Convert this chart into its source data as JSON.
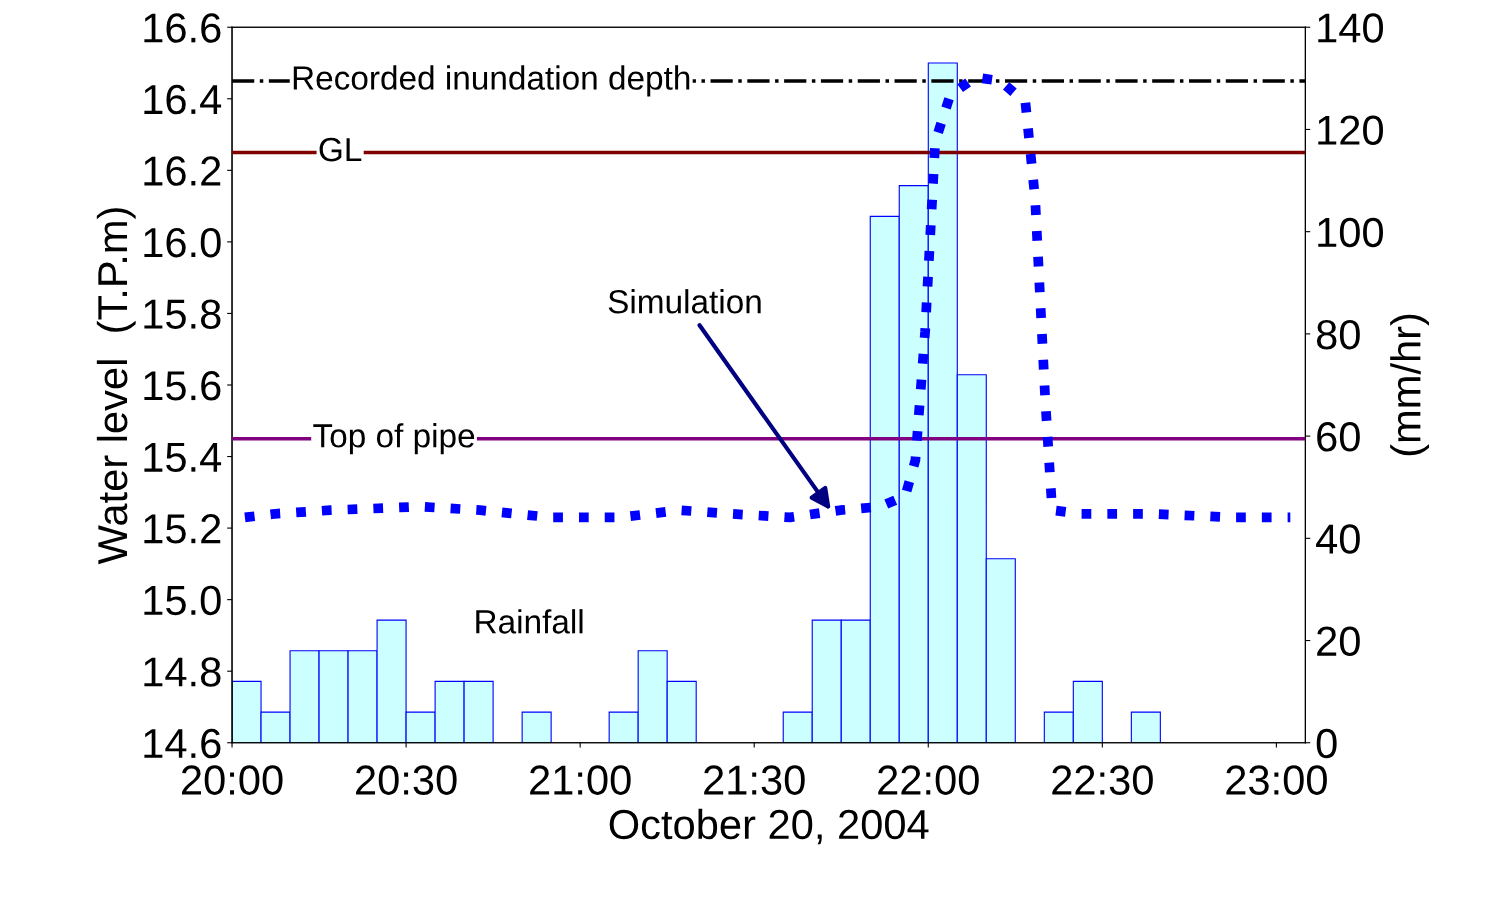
{
  "chart_data": {
    "type": "bar",
    "xlabel": "October 20, 2004",
    "ylabel": "Water level  (T.P.m)",
    "y2label": "(mm/hr)",
    "xlim": [
      20,
      23.0833
    ],
    "xticks": [
      {
        "value": 20,
        "label": "20:00"
      },
      {
        "value": 20.5,
        "label": "20:30"
      },
      {
        "value": 21,
        "label": "21:00"
      },
      {
        "value": 21.5,
        "label": "21:30"
      },
      {
        "value": 22,
        "label": "22:00"
      },
      {
        "value": 22.5,
        "label": "22:30"
      },
      {
        "value": 23,
        "label": "23:00"
      }
    ],
    "ylim": [
      14.6,
      16.6
    ],
    "yticks": [
      {
        "value": 14.6,
        "label": "14.6"
      },
      {
        "value": 14.8,
        "label": "14.8"
      },
      {
        "value": 15.0,
        "label": "15.0"
      },
      {
        "value": 15.2,
        "label": "15.2"
      },
      {
        "value": 15.4,
        "label": "15.4"
      },
      {
        "value": 15.6,
        "label": "15.6"
      },
      {
        "value": 15.8,
        "label": "15.8"
      },
      {
        "value": 16.0,
        "label": "16.0"
      },
      {
        "value": 16.2,
        "label": "16.2"
      },
      {
        "value": 16.4,
        "label": "16.4"
      },
      {
        "value": 16.6,
        "label": "16.6"
      }
    ],
    "y2lim": [
      0,
      140
    ],
    "y2ticks": [
      0,
      20,
      40,
      60,
      80,
      100,
      120,
      140
    ],
    "series": [
      {
        "axis": "y2",
        "color": "#ccffff",
        "x": [
          20.0417,
          20.125,
          20.2083,
          20.2917,
          20.375,
          20.4583,
          20.5417,
          20.625,
          20.7083,
          20.7917,
          20.875,
          20.9583,
          21.0417,
          21.125,
          21.2083,
          21.2917,
          21.375,
          21.4583,
          21.5417,
          21.625,
          21.7083,
          21.7917,
          21.875,
          21.9583,
          22.0417,
          22.125,
          22.2083,
          22.2917,
          22.375,
          22.4583,
          22.5417,
          22.625,
          22.7083,
          22.7917,
          22.875,
          22.9583
        ],
        "values": [
          12,
          6,
          18,
          18,
          18,
          24,
          6,
          12,
          12,
          0,
          6,
          0,
          0,
          6,
          18,
          12,
          0,
          0,
          0,
          6,
          24,
          24,
          103,
          109,
          133,
          72,
          36,
          0,
          6,
          12,
          0,
          6,
          0,
          0,
          0,
          0
        ]
      },
      {
        "type": "line",
        "color": "#0000ff",
        "line_style": "dotted",
        "x": [
          20.037,
          20.124,
          20.282,
          20.54,
          20.713,
          20.914,
          21.115,
          21.287,
          21.431,
          21.603,
          21.747,
          21.862,
          21.934,
          21.963,
          21.991,
          22.02,
          22.063,
          22.135,
          22.207,
          22.279,
          22.307,
          22.336,
          22.356,
          22.437,
          22.638,
          22.868,
          23.04
        ],
        "values": [
          15.23,
          15.24,
          15.25,
          15.26,
          15.25,
          15.23,
          15.23,
          15.25,
          15.24,
          15.23,
          15.25,
          15.26,
          15.29,
          15.39,
          15.75,
          16.28,
          16.41,
          16.46,
          16.45,
          16.39,
          16.12,
          15.56,
          15.25,
          15.24,
          15.24,
          15.23,
          15.23
        ]
      }
    ],
    "ref_lines": [
      {
        "axis": "y",
        "value": 16.45,
        "label": "Recorded inundation depth",
        "color": "#000000",
        "line_style": "dashdot"
      },
      {
        "axis": "y",
        "value": 16.25,
        "label": "GL",
        "color": "#800000",
        "line_style": "solid"
      },
      {
        "axis": "y",
        "value": 15.45,
        "label": "Top of pipe",
        "color": "#800080",
        "line_style": "solid"
      }
    ],
    "annotations": [
      {
        "text": "Simulation",
        "x": 21.72,
        "y": 15.25
      },
      "Rainfall"
    ],
    "grid": false,
    "legend": false
  }
}
